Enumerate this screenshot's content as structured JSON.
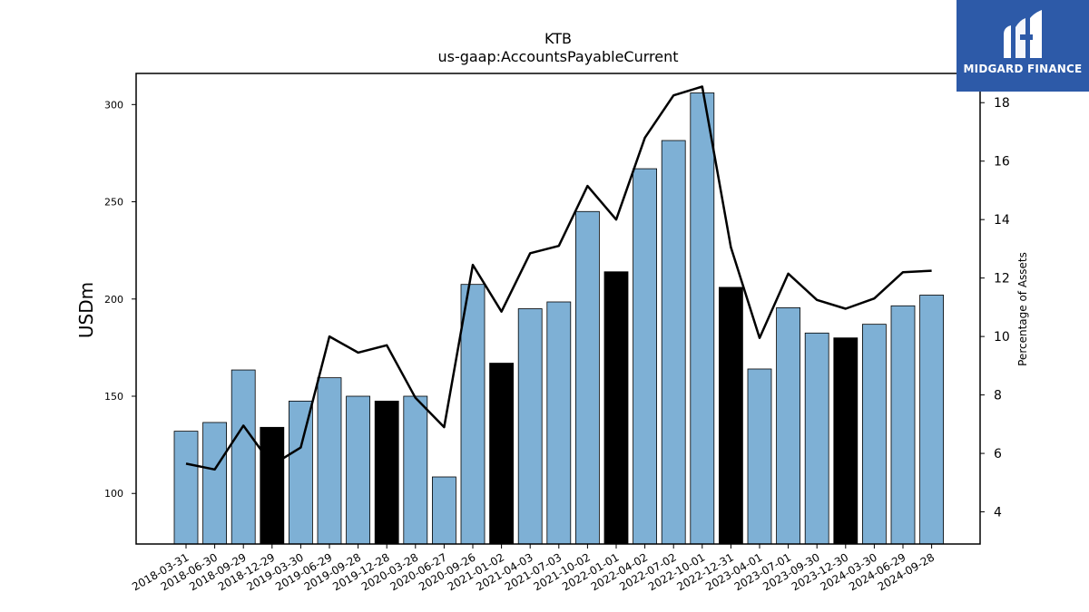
{
  "chart_data": {
    "type": "bar",
    "title": "KTB",
    "subtitle": "us-gaap:AccountsPayableCurrent",
    "ylabel": "USDm",
    "y2label": "Percentage of Assets",
    "ylim": [
      74,
      316
    ],
    "y2lim": [
      2.9,
      19.0
    ],
    "yticks": [
      100,
      150,
      200,
      250,
      300
    ],
    "y2ticks": [
      4,
      6,
      8,
      10,
      12,
      14,
      16,
      18
    ],
    "categories": [
      "2018-03-31",
      "2018-06-30",
      "2018-09-29",
      "2018-12-29",
      "2019-03-30",
      "2019-06-29",
      "2019-09-28",
      "2019-12-28",
      "2020-03-28",
      "2020-06-27",
      "2020-09-26",
      "2021-01-02",
      "2021-04-03",
      "2021-07-03",
      "2021-10-02",
      "2022-01-01",
      "2022-04-02",
      "2022-07-02",
      "2022-10-01",
      "2022-12-31",
      "2023-04-01",
      "2023-07-01",
      "2023-09-30",
      "2023-12-30",
      "2024-03-30",
      "2024-06-29",
      "2024-09-28"
    ],
    "series": [
      {
        "type": "bar",
        "values": [
          132,
          136.5,
          163.5,
          134,
          147.5,
          159.5,
          150,
          147.5,
          150,
          108.5,
          207.5,
          167,
          195,
          198.5,
          245,
          214,
          267,
          281.5,
          306,
          206,
          164,
          195.5,
          182.5,
          180,
          187,
          196.5,
          202
        ],
        "highlight": [
          false,
          false,
          false,
          true,
          false,
          false,
          false,
          true,
          false,
          false,
          false,
          true,
          false,
          false,
          false,
          true,
          false,
          false,
          false,
          true,
          false,
          false,
          false,
          true,
          false,
          false,
          false
        ]
      },
      {
        "type": "line",
        "axis": "right",
        "values": [
          5.65,
          5.45,
          6.95,
          5.6,
          6.2,
          10.0,
          9.45,
          9.7,
          7.9,
          6.9,
          12.45,
          10.85,
          12.85,
          13.1,
          15.15,
          14.0,
          16.8,
          18.25,
          18.55,
          13.05,
          9.95,
          12.15,
          11.25,
          10.95,
          11.3,
          12.2,
          12.25
        ]
      }
    ],
    "colors": {
      "bar": "#7eb0d5",
      "bar_highlight": "#000000",
      "line": "#000000",
      "bar_edge": "#000000"
    },
    "grid": false,
    "legend": "none"
  },
  "logo": {
    "text": "MIDGARD FINANCE",
    "background": "#2d5aa8"
  }
}
